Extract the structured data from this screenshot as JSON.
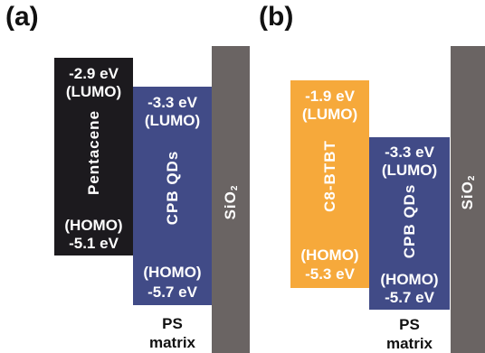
{
  "panels": [
    {
      "label": "(a)",
      "semiconductor": {
        "name": "Pentacene",
        "lumo_value": "-2.9 eV",
        "lumo_label": "(LUMO)",
        "homo_label": "(HOMO)",
        "homo_value": "-5.1 eV",
        "color": "#1c1a1e"
      },
      "qds": {
        "name": "CPB QDs",
        "lumo_value": "-3.3 eV",
        "lumo_label": "(LUMO)",
        "homo_label": "(HOMO)",
        "homo_value": "-5.7 eV",
        "color": "#414b87"
      },
      "dielectric": {
        "name": "SiO",
        "subscript": "2",
        "color": "#6a6463"
      },
      "matrix": {
        "line1": "PS",
        "line2": "matrix"
      }
    },
    {
      "label": "(b)",
      "semiconductor": {
        "name": "C8-BTBT",
        "lumo_value": "-1.9 eV",
        "lumo_label": "(LUMO)",
        "homo_label": "(HOMO)",
        "homo_value": "-5.3 eV",
        "color": "#f6a93b"
      },
      "qds": {
        "name": "CPB QDs",
        "lumo_value": "-3.3 eV",
        "lumo_label": "(LUMO)",
        "homo_label": "(HOMO)",
        "homo_value": "-5.7 eV",
        "color": "#414b87"
      },
      "dielectric": {
        "name": "SiO",
        "subscript": "2",
        "color": "#6a6463"
      },
      "matrix": {
        "line1": "PS",
        "line2": "matrix"
      }
    }
  ]
}
